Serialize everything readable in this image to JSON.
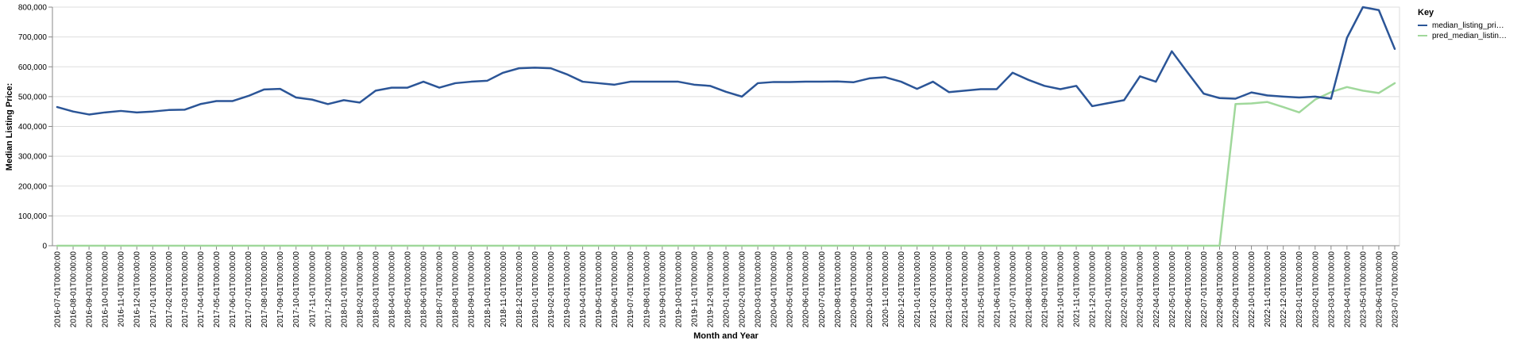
{
  "chart_data": {
    "type": "line",
    "xlabel": "Month and Year",
    "ylabel": "Median Listing Price:",
    "ylim": [
      0,
      800000
    ],
    "yticks": [
      0,
      100000,
      200000,
      300000,
      400000,
      500000,
      600000,
      700000,
      800000
    ],
    "ytick_labels": [
      "0",
      "100,000",
      "200,000",
      "300,000",
      "400,000",
      "500,000",
      "600,000",
      "700,000",
      "800,000"
    ],
    "grid": true,
    "legend": {
      "title": "Key",
      "placement": "right",
      "labels": [
        "median_listing_pri…",
        "pred_median_listin…"
      ]
    },
    "x": [
      "2016-07-01T00:00:00",
      "2016-08-01T00:00:00",
      "2016-09-01T00:00:00",
      "2016-10-01T00:00:00",
      "2016-11-01T00:00:00",
      "2016-12-01T00:00:00",
      "2017-01-01T00:00:00",
      "2017-02-01T00:00:00",
      "2017-03-01T00:00:00",
      "2017-04-01T00:00:00",
      "2017-05-01T00:00:00",
      "2017-06-01T00:00:00",
      "2017-07-01T00:00:00",
      "2017-08-01T00:00:00",
      "2017-09-01T00:00:00",
      "2017-10-01T00:00:00",
      "2017-11-01T00:00:00",
      "2017-12-01T00:00:00",
      "2018-01-01T00:00:00",
      "2018-02-01T00:00:00",
      "2018-03-01T00:00:00",
      "2018-04-01T00:00:00",
      "2018-05-01T00:00:00",
      "2018-06-01T00:00:00",
      "2018-07-01T00:00:00",
      "2018-08-01T00:00:00",
      "2018-09-01T00:00:00",
      "2018-10-01T00:00:00",
      "2018-11-01T00:00:00",
      "2018-12-01T00:00:00",
      "2019-01-01T00:00:00",
      "2019-02-01T00:00:00",
      "2019-03-01T00:00:00",
      "2019-04-01T00:00:00",
      "2019-05-01T00:00:00",
      "2019-06-01T00:00:00",
      "2019-07-01T00:00:00",
      "2019-08-01T00:00:00",
      "2019-09-01T00:00:00",
      "2019-10-01T00:00:00",
      "2019-11-01T00:00:00",
      "2019-12-01T00:00:00",
      "2020-01-01T00:00:00",
      "2020-02-01T00:00:00",
      "2020-03-01T00:00:00",
      "2020-04-01T00:00:00",
      "2020-05-01T00:00:00",
      "2020-06-01T00:00:00",
      "2020-07-01T00:00:00",
      "2020-08-01T00:00:00",
      "2020-09-01T00:00:00",
      "2020-10-01T00:00:00",
      "2020-11-01T00:00:00",
      "2020-12-01T00:00:00",
      "2021-01-01T00:00:00",
      "2021-02-01T00:00:00",
      "2021-03-01T00:00:00",
      "2021-04-01T00:00:00",
      "2021-05-01T00:00:00",
      "2021-06-01T00:00:00",
      "2021-07-01T00:00:00",
      "2021-08-01T00:00:00",
      "2021-09-01T00:00:00",
      "2021-10-01T00:00:00",
      "2021-11-01T00:00:00",
      "2021-12-01T00:00:00",
      "2022-01-01T00:00:00",
      "2022-02-01T00:00:00",
      "2022-03-01T00:00:00",
      "2022-04-01T00:00:00",
      "2022-05-01T00:00:00",
      "2022-06-01T00:00:00",
      "2022-07-01T00:00:00",
      "2022-08-01T00:00:00",
      "2022-09-01T00:00:00",
      "2022-10-01T00:00:00",
      "2022-11-01T00:00:00",
      "2022-12-01T00:00:00",
      "2023-01-01T00:00:00",
      "2023-02-01T00:00:00",
      "2023-03-01T00:00:00",
      "2023-04-01T00:00:00",
      "2023-05-01T00:00:00",
      "2023-06-01T00:00:00",
      "2023-07-01T00:00:00"
    ],
    "series": [
      {
        "name": "median_listing_pri…",
        "color": "#2b5597",
        "values": [
          465000,
          450000,
          440000,
          447000,
          452000,
          447000,
          450000,
          455000,
          456000,
          475000,
          485000,
          485000,
          502000,
          524000,
          526000,
          497000,
          490000,
          475000,
          488000,
          480000,
          520000,
          530000,
          530000,
          550000,
          530000,
          545000,
          550000,
          553000,
          580000,
          595000,
          597000,
          595000,
          575000,
          550000,
          545000,
          540000,
          550000,
          550000,
          550000,
          550000,
          540000,
          536000,
          516000,
          500000,
          545000,
          549000,
          549000,
          550000,
          550000,
          551000,
          548000,
          561000,
          565000,
          550000,
          526000,
          550000,
          515000,
          520000,
          525000,
          525000,
          580000,
          556000,
          536000,
          525000,
          536000,
          468000,
          478000,
          488000,
          568000,
          550000,
          652000,
          580000,
          510000,
          495000,
          493000,
          514000,
          504000,
          500000,
          497000,
          500000,
          493000,
          697000,
          800000,
          790000,
          660000
        ]
      },
      {
        "name": "pred_median_listin…",
        "color": "#a0d89b",
        "values": [
          0,
          0,
          0,
          0,
          0,
          0,
          0,
          0,
          0,
          0,
          0,
          0,
          0,
          0,
          0,
          0,
          0,
          0,
          0,
          0,
          0,
          0,
          0,
          0,
          0,
          0,
          0,
          0,
          0,
          0,
          0,
          0,
          0,
          0,
          0,
          0,
          0,
          0,
          0,
          0,
          0,
          0,
          0,
          0,
          0,
          0,
          0,
          0,
          0,
          0,
          0,
          0,
          0,
          0,
          0,
          0,
          0,
          0,
          0,
          0,
          0,
          0,
          0,
          0,
          0,
          0,
          0,
          0,
          0,
          0,
          0,
          0,
          0,
          0,
          475000,
          477000,
          482000,
          465000,
          447000,
          490000,
          515000,
          532000,
          520000,
          512000,
          545000
        ]
      }
    ]
  }
}
